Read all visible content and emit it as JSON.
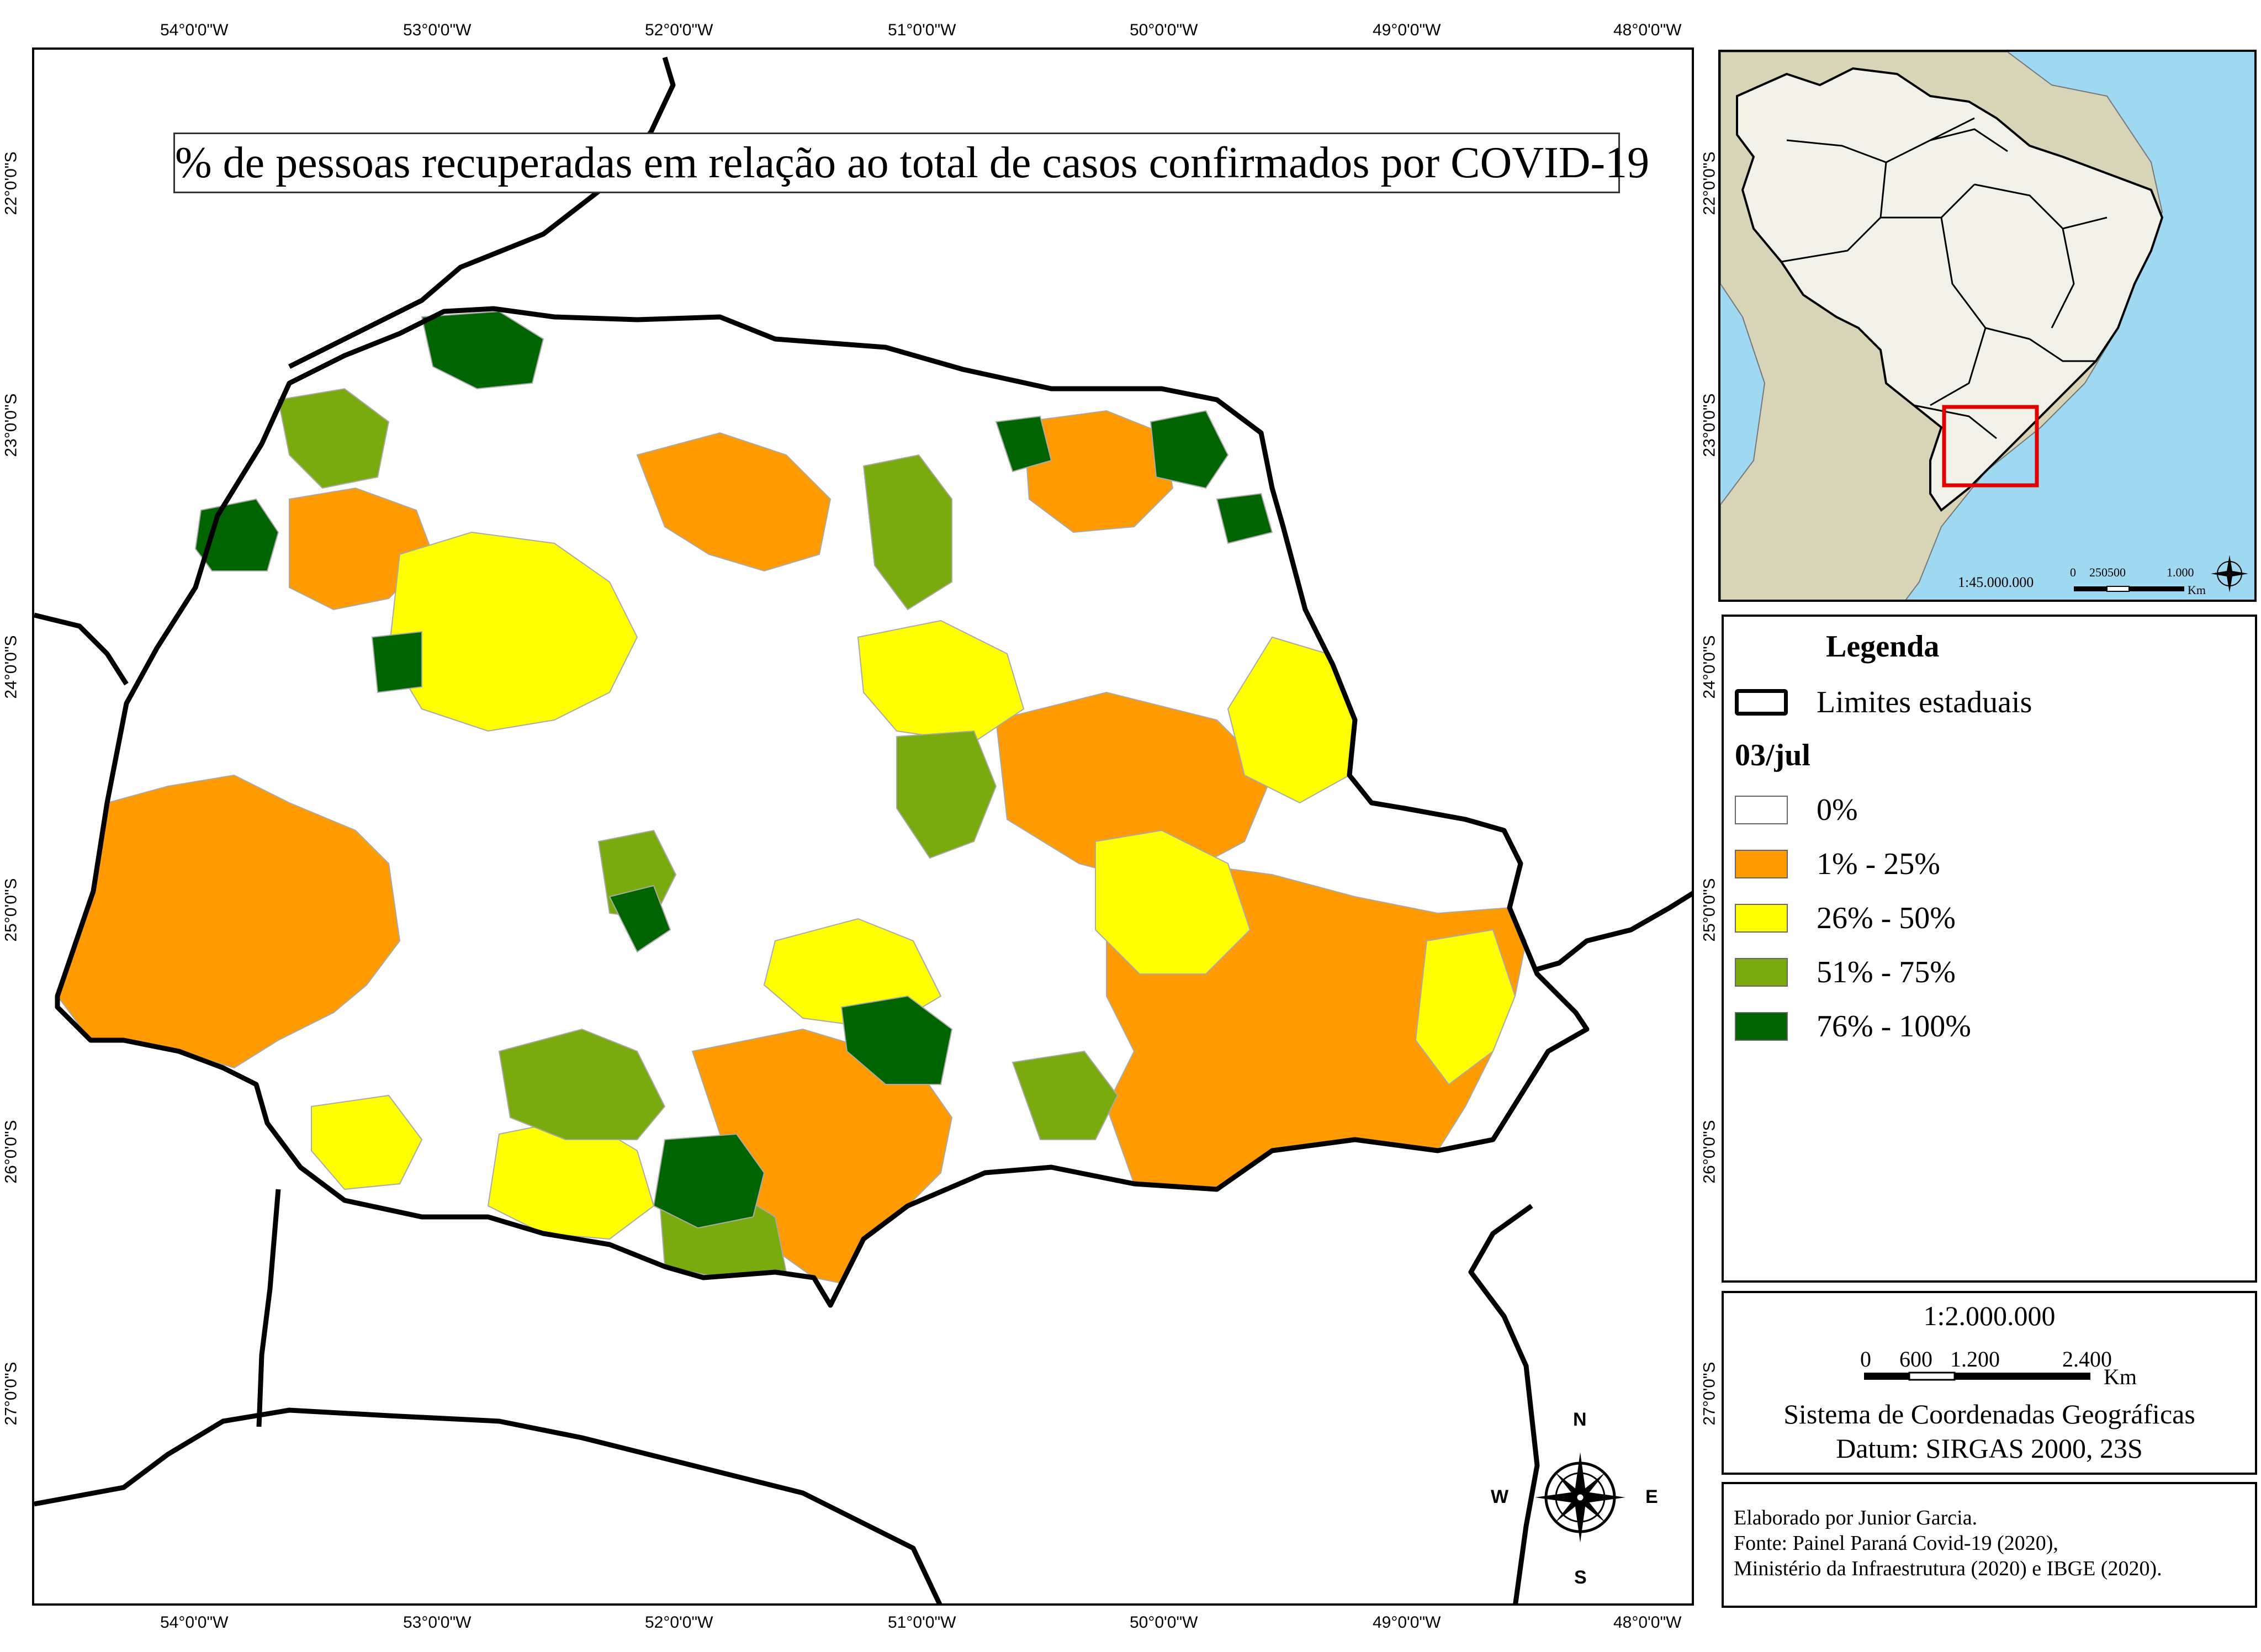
{
  "map": {
    "title": "% de pessoas recuperadas em relação ao total de casos confirmados por COVID-19",
    "lon_ticks_top": [
      "54°0'0\"W",
      "53°0'0\"W",
      "52°0'0\"W",
      "51°0'0\"W",
      "50°0'0\"W",
      "49°0'0\"W",
      "48°0'0\"W"
    ],
    "lon_ticks_bottom": [
      "54°0'0\"W",
      "53°0'0\"W",
      "52°0'0\"W",
      "51°0'0\"W",
      "50°0'0\"W",
      "49°0'0\"W",
      "48°0'0\"W"
    ],
    "lat_ticks_left": [
      "22°0'0\"S",
      "23°0'0\"S",
      "24°0'0\"S",
      "25°0'0\"S",
      "26°0'0\"S",
      "27°0'0\"S"
    ],
    "lat_ticks_right": [
      "22°0'0\"S",
      "23°0'0\"S",
      "24°0'0\"S",
      "25°0'0\"S",
      "26°0'0\"S",
      "27°0'0\"S"
    ],
    "compass": {
      "n": "N",
      "s": "S",
      "e": "E",
      "w": "W"
    }
  },
  "inset": {
    "scale_ratio": "1:45.000.000",
    "scale_labels": [
      "0",
      "250500",
      "1.000"
    ],
    "scale_unit": "Km"
  },
  "legend": {
    "title": "Legenda",
    "boundary_label": "Limites estaduais",
    "date_label": "03/jul",
    "classes": [
      {
        "label": "0%",
        "color": "#ffffff"
      },
      {
        "label": "1% - 25%",
        "color": "#ff9a00"
      },
      {
        "label": "26% - 50%",
        "color": "#ffff00"
      },
      {
        "label": "51% - 75%",
        "color": "#7aab0e"
      },
      {
        "label": "76% - 100%",
        "color": "#006400"
      }
    ]
  },
  "scale": {
    "ratio": "1:2.000.000",
    "labels": [
      "0",
      "600",
      "1.200",
      "2.400"
    ],
    "unit": "Km",
    "crs_line1": "Sistema de Coordenadas Geográficas",
    "crs_line2": "Datum: SIRGAS 2000, 23S"
  },
  "credits": {
    "line1": "Elaborado por Junior Garcia.",
    "line2": "Fonte: Painel Paraná Covid-19 (2020),",
    "line3": "Ministério da Infraestrutura (2020) e IBGE (2020)."
  },
  "colors": {
    "zero": "#ffffff",
    "low": "#ff9a00",
    "mid": "#ffff00",
    "high": "#7aab0e",
    "top": "#006400",
    "ocean": "#9fd9f1",
    "brazil": "#f2f1e8",
    "southamerica": "#d7d4b8",
    "inset_box": "#e00000"
  }
}
